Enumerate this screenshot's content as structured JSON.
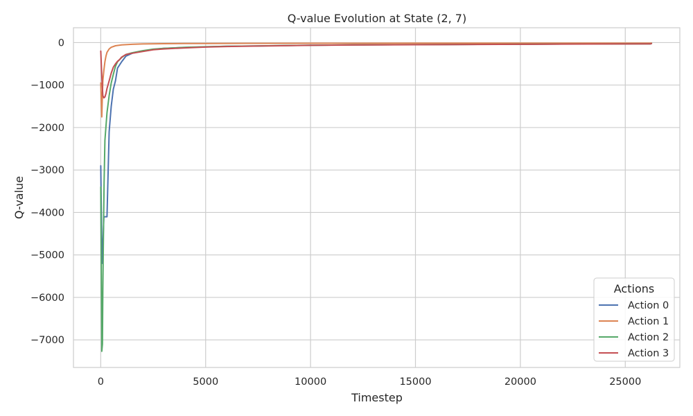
{
  "chart_data": {
    "type": "line",
    "title": "Q-value Evolution at State (2, 7)",
    "xlabel": "Timestep",
    "ylabel": "Q-value",
    "xlim": [
      -1300,
      27600
    ],
    "ylim": [
      -7650,
      350
    ],
    "xticks": [
      0,
      5000,
      10000,
      15000,
      20000,
      25000
    ],
    "yticks": [
      0,
      -1000,
      -2000,
      -3000,
      -4000,
      -5000,
      -6000,
      -7000
    ],
    "xtick_labels": [
      "0",
      "5000",
      "10000",
      "15000",
      "20000",
      "25000"
    ],
    "ytick_labels": [
      "0",
      "−1000",
      "−2000",
      "−3000",
      "−4000",
      "−5000",
      "−6000",
      "−7000"
    ],
    "grid": true,
    "legend": {
      "title": "Actions",
      "placement": "bottom-right"
    },
    "series": [
      {
        "name": "Action 0",
        "color": "#4c72b0",
        "x": [
          0,
          60,
          100,
          150,
          200,
          300,
          400,
          500,
          600,
          700,
          800,
          1000,
          1200,
          1500,
          2000,
          2500,
          3000,
          4000,
          5000,
          6000,
          8000,
          10000,
          12000,
          15000,
          18000,
          20000,
          22000,
          25000,
          26200,
          26250
        ],
        "y": [
          -2900,
          -5200,
          -4800,
          -4100,
          -4100,
          -4100,
          -2100,
          -1500,
          -1100,
          -900,
          -600,
          -450,
          -320,
          -250,
          -200,
          -160,
          -135,
          -115,
          -100,
          -88,
          -75,
          -62,
          -55,
          -48,
          -42,
          -38,
          -34,
          -30,
          -28,
          -20
        ]
      },
      {
        "name": "Action 1",
        "color": "#dd8452",
        "x": [
          0,
          50,
          80,
          100,
          150,
          200,
          250,
          300,
          400,
          500,
          700,
          1000,
          1500,
          2000,
          3000,
          4000,
          5000,
          7000,
          10000,
          15000,
          20000,
          25000,
          26200,
          26250
        ],
        "y": [
          -950,
          -1750,
          -1200,
          -900,
          -650,
          -450,
          -320,
          -230,
          -150,
          -110,
          -75,
          -55,
          -40,
          -32,
          -25,
          -22,
          -20,
          -18,
          -16,
          -14,
          -13,
          -12,
          -12,
          -10
        ]
      },
      {
        "name": "Action 2",
        "color": "#55a868",
        "x": [
          0,
          50,
          80,
          100,
          130,
          160,
          200,
          300,
          400,
          500,
          600,
          700,
          800,
          1000,
          1200,
          1500,
          2000,
          2500,
          3000,
          4000,
          5000,
          6000,
          8000,
          10000,
          12000,
          15000,
          18000,
          20000,
          22000,
          25000,
          26200,
          26250
        ],
        "y": [
          -3400,
          -7270,
          -7100,
          -5800,
          -4500,
          -3300,
          -2300,
          -1650,
          -1250,
          -950,
          -750,
          -560,
          -450,
          -350,
          -280,
          -240,
          -190,
          -155,
          -135,
          -112,
          -98,
          -88,
          -74,
          -62,
          -55,
          -48,
          -42,
          -38,
          -34,
          -30,
          -28,
          -20
        ]
      },
      {
        "name": "Action 3",
        "color": "#c44e52",
        "x": [
          0,
          60,
          100,
          150,
          200,
          250,
          300,
          400,
          500,
          600,
          700,
          800,
          900,
          1000,
          1200,
          1500,
          2000,
          2500,
          3000,
          4000,
          5000,
          6000,
          8000,
          10000,
          12000,
          15000,
          18000,
          20000,
          22000,
          25000,
          26200,
          26250
        ],
        "y": [
          -200,
          -900,
          -1250,
          -1300,
          -1280,
          -1200,
          -1080,
          -900,
          -720,
          -580,
          -500,
          -440,
          -400,
          -340,
          -280,
          -250,
          -210,
          -170,
          -150,
          -125,
          -105,
          -92,
          -78,
          -65,
          -57,
          -50,
          -44,
          -40,
          -36,
          -32,
          -30,
          -22
        ]
      }
    ]
  }
}
